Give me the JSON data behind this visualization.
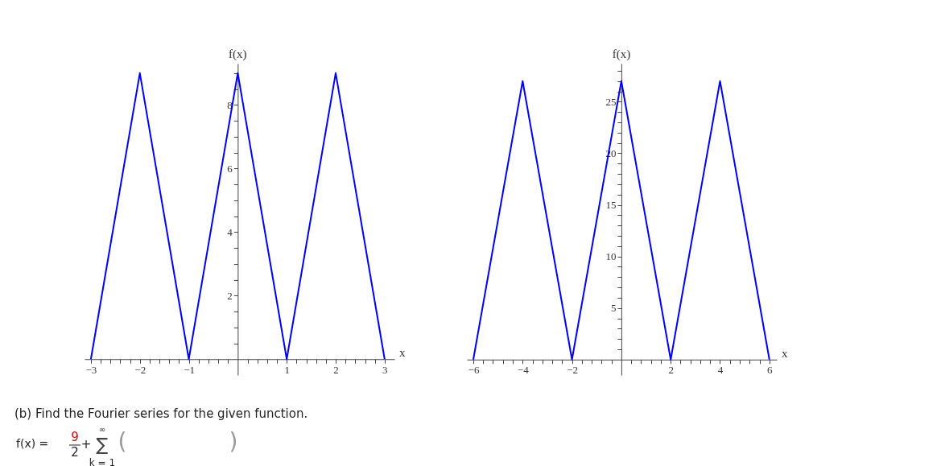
{
  "chart_data": [
    {
      "type": "line",
      "xlabel": "x",
      "ylabel": "f(x)",
      "x": [
        -3,
        -2,
        -1,
        0,
        1,
        2,
        3
      ],
      "series": [
        {
          "color": "#0000ff",
          "values": [
            0,
            9,
            0,
            9,
            0,
            9,
            0
          ]
        }
      ],
      "xlim": [
        -3.13,
        3.2
      ],
      "ylim": [
        -0.5,
        9.3
      ],
      "xticks": [
        -3,
        -2,
        -1,
        1,
        2,
        3,
        {
          "value": -2.8,
          "label": null
        },
        {
          "value": -2.6,
          "label": null
        },
        {
          "value": -2.4,
          "label": null
        },
        {
          "value": -2.2,
          "label": null
        },
        {
          "value": -1.8,
          "label": null
        },
        {
          "value": -1.6,
          "label": null
        },
        {
          "value": -1.4,
          "label": null
        },
        {
          "value": -1.2,
          "label": null
        },
        {
          "value": -0.8,
          "label": null
        },
        {
          "value": -0.6,
          "label": null
        },
        {
          "value": -0.4,
          "label": null
        },
        {
          "value": -0.2,
          "label": null
        },
        {
          "value": 0.2,
          "label": null
        },
        {
          "value": 0.4,
          "label": null
        },
        {
          "value": 0.6,
          "label": null
        },
        {
          "value": 0.8,
          "label": null
        },
        {
          "value": 1.2,
          "label": null
        },
        {
          "value": 1.4,
          "label": null
        },
        {
          "value": 1.6,
          "label": null
        },
        {
          "value": 1.8,
          "label": null
        },
        {
          "value": 2.2,
          "label": null
        },
        {
          "value": 2.4,
          "label": null
        },
        {
          "value": 2.6,
          "label": null
        },
        {
          "value": 2.8,
          "label": null
        }
      ],
      "yticks": [
        2,
        4,
        6,
        8,
        {
          "value": 0.5,
          "label": null
        },
        {
          "value": 1,
          "label": null
        },
        {
          "value": 1.5,
          "label": null
        },
        {
          "value": 2.5,
          "label": null
        },
        {
          "value": 3,
          "label": null
        },
        {
          "value": 3.5,
          "label": null
        },
        {
          "value": 4.5,
          "label": null
        },
        {
          "value": 5,
          "label": null
        },
        {
          "value": 5.5,
          "label": null
        },
        {
          "value": 6.5,
          "label": null
        },
        {
          "value": 7,
          "label": null
        },
        {
          "value": 7.5,
          "label": null
        },
        {
          "value": 8.5,
          "label": null
        },
        {
          "value": 9,
          "label": null
        }
      ],
      "grid": false,
      "annotations": [
        "(b) Find the Fourier series for the given function.",
        "f(x) =",
        "9",
        "2",
        "+",
        "∑",
        "∞",
        "k = 1",
        "(",
        ")"
      ]
    },
    {
      "type": "line",
      "xlabel": "x",
      "ylabel": "f(x)",
      "x": [
        -6,
        -4,
        -2,
        0,
        2,
        4,
        6
      ],
      "series": [
        {
          "color": "#0000ff",
          "values": [
            0,
            27,
            0,
            27,
            0,
            27,
            0
          ]
        }
      ],
      "xlim": [
        -6.26,
        6.3
      ],
      "ylim": [
        -1.5,
        28.7
      ],
      "xticks": [
        -6,
        -4,
        -2,
        2,
        4,
        6,
        {
          "value": -5.6,
          "label": null
        },
        {
          "value": -5.2,
          "label": null
        },
        {
          "value": -4.8,
          "label": null
        },
        {
          "value": -4.4,
          "label": null
        },
        {
          "value": -3.6,
          "label": null
        },
        {
          "value": -3.2,
          "label": null
        },
        {
          "value": -2.8,
          "label": null
        },
        {
          "value": -2.4,
          "label": null
        },
        {
          "value": -1.6,
          "label": null
        },
        {
          "value": -1.2,
          "label": null
        },
        {
          "value": -0.8,
          "label": null
        },
        {
          "value": -0.4,
          "label": null
        },
        {
          "value": 0.4,
          "label": null
        },
        {
          "value": 0.8,
          "label": null
        },
        {
          "value": 1.2,
          "label": null
        },
        {
          "value": 1.6,
          "label": null
        },
        {
          "value": 2.4,
          "label": null
        },
        {
          "value": 2.8,
          "label": null
        },
        {
          "value": 3.2,
          "label": null
        },
        {
          "value": 3.6,
          "label": null
        },
        {
          "value": 4.4,
          "label": null
        },
        {
          "value": 4.8,
          "label": null
        },
        {
          "value": 5.2,
          "label": null
        },
        {
          "value": 5.6,
          "label": null
        }
      ],
      "yticks": [
        5,
        10,
        15,
        20,
        25,
        {
          "value": 1,
          "label": null
        },
        {
          "value": 2,
          "label": null
        },
        {
          "value": 3,
          "label": null
        },
        {
          "value": 4,
          "label": null
        },
        {
          "value": 6,
          "label": null
        },
        {
          "value": 7,
          "label": null
        },
        {
          "value": 8,
          "label": null
        },
        {
          "value": 9,
          "label": null
        },
        {
          "value": 11,
          "label": null
        },
        {
          "value": 12,
          "label": null
        },
        {
          "value": 13,
          "label": null
        },
        {
          "value": 14,
          "label": null
        },
        {
          "value": 16,
          "label": null
        },
        {
          "value": 17,
          "label": null
        },
        {
          "value": 18,
          "label": null
        },
        {
          "value": 19,
          "label": null
        },
        {
          "value": 21,
          "label": null
        },
        {
          "value": 22,
          "label": null
        },
        {
          "value": 23,
          "label": null
        },
        {
          "value": 24,
          "label": null
        },
        {
          "value": 26,
          "label": null
        },
        {
          "value": 27,
          "label": null
        },
        {
          "value": 28,
          "label": null
        }
      ],
      "grid": false
    }
  ]
}
